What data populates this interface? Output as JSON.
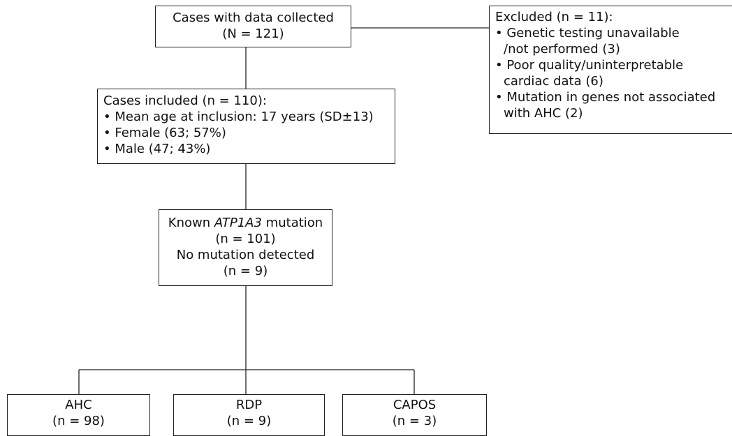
{
  "nodes": {
    "collected": {
      "title": "Cases with data collected",
      "count": "(N = 121)"
    },
    "excluded": {
      "title": "Excluded (n = 11):",
      "lines": [
        "• Genetic testing unavailable",
        "/not performed (3)",
        "• Poor quality/uninterpretable",
        "cardiac data (6)",
        "• Mutation in genes not associated",
        "with AHC (2)"
      ]
    },
    "included": {
      "title": "Cases included (n = 110):",
      "items": [
        "• Mean age at inclusion: 17 years (SD±13)",
        "• Female (63; 57%)",
        "• Male (47; 43%)"
      ]
    },
    "mutation": {
      "known": [
        "Known",
        "ATP1A3",
        "mutation"
      ],
      "known_count": "(n = 101)",
      "none": "No mutation detected",
      "none_count": "(n = 9)"
    },
    "groups": [
      {
        "label": "AHC",
        "count": "(n = 98)"
      },
      {
        "label": "RDP",
        "count": "(n = 9)"
      },
      {
        "label": "CAPOS",
        "count": "(n = 3)"
      }
    ]
  }
}
